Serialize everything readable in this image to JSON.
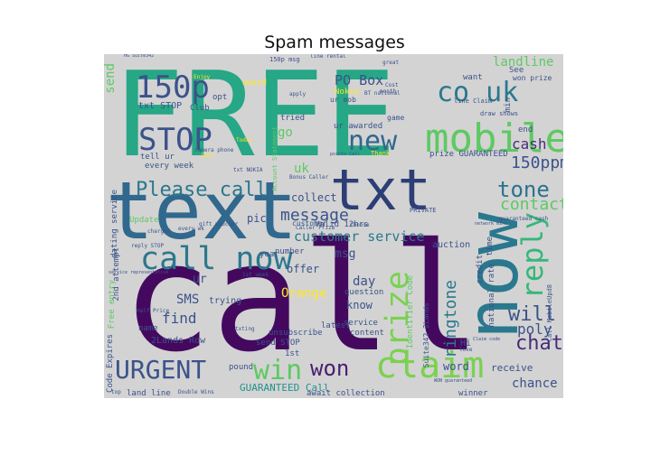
{
  "title": "Spam messages",
  "colors": {
    "background": "#d3d3d3",
    "palette": [
      "#440154",
      "#3b528b",
      "#21918c",
      "#5ec962",
      "#fde725",
      "#2c7f8e"
    ]
  },
  "words": [
    {
      "text": "FREE",
      "color": "#26a785",
      "weight": 100
    },
    {
      "text": "call",
      "color": "#44095f",
      "weight": 98
    },
    {
      "text": "now",
      "color": "#2a788e",
      "weight": 80
    },
    {
      "text": "text",
      "color": "#30688e",
      "weight": 75
    },
    {
      "text": "txt",
      "color": "#2c3e75",
      "weight": 70
    },
    {
      "text": "mobile",
      "color": "#5ec962",
      "weight": 55
    },
    {
      "text": "claim",
      "color": "#7ad151",
      "weight": 50
    },
    {
      "text": "reply",
      "color": "#35b779",
      "weight": 48
    },
    {
      "text": "prize",
      "color": "#7ad151",
      "weight": 46
    },
    {
      "text": "co uk",
      "color": "#2a788e",
      "weight": 45
    },
    {
      "text": "STOP",
      "color": "#3b528b",
      "weight": 44
    },
    {
      "text": "URGENT",
      "color": "#3b528b",
      "weight": 42
    },
    {
      "text": "call now",
      "color": "#2a788e",
      "weight": 42
    },
    {
      "text": "new",
      "color": "#31688e",
      "weight": 40
    },
    {
      "text": "150p",
      "color": "#3b528b",
      "weight": 40
    },
    {
      "text": "win",
      "color": "#5ec962",
      "weight": 38
    },
    {
      "text": "won",
      "color": "#481f70",
      "weight": 38
    },
    {
      "text": "Please call",
      "color": "#2a788e",
      "weight": 36
    },
    {
      "text": "tone",
      "color": "#2c728e",
      "weight": 36
    },
    {
      "text": "chat",
      "color": "#472c7a",
      "weight": 34
    },
    {
      "text": "ringtone",
      "color": "#2a788e",
      "weight": 32
    },
    {
      "text": "contact",
      "color": "#5ec962",
      "weight": 30
    },
    {
      "text": "will",
      "color": "#3b528b",
      "weight": 30
    },
    {
      "text": "message",
      "color": "#3b528b",
      "weight": 28
    },
    {
      "text": "customer service",
      "color": "#2a788e",
      "weight": 26
    },
    {
      "text": "150ppm",
      "color": "#3b528b",
      "weight": 26
    },
    {
      "text": "landline",
      "color": "#5ec962",
      "weight": 24
    },
    {
      "text": "PO Box",
      "color": "#3b528b",
      "weight": 24
    },
    {
      "text": "cash",
      "color": "#472c7a",
      "weight": 24
    },
    {
      "text": "poly",
      "color": "#3b528b",
      "weight": 24
    },
    {
      "text": "chance",
      "color": "#3b528b",
      "weight": 22
    },
    {
      "text": "find",
      "color": "#3b528b",
      "weight": 22
    },
    {
      "text": "go",
      "color": "#5ec962",
      "weight": 22
    },
    {
      "text": "send",
      "color": "#5ec962",
      "weight": 22
    },
    {
      "text": "Orange",
      "color": "#fde725",
      "weight": 22
    },
    {
      "text": "GUARANTEED Call",
      "color": "#21918c",
      "weight": 20
    },
    {
      "text": "SMS",
      "color": "#3b528b",
      "weight": 20
    },
    {
      "text": "uk",
      "color": "#5ec962",
      "weight": 20
    },
    {
      "text": "collect",
      "color": "#3b528b",
      "weight": 18
    },
    {
      "text": "offer",
      "color": "#3b528b",
      "weight": 18
    },
    {
      "text": "msg",
      "color": "#3b528b",
      "weight": 18
    },
    {
      "text": "day",
      "color": "#3b528b",
      "weight": 18
    },
    {
      "text": "know",
      "color": "#3b528b",
      "weight": 18
    },
    {
      "text": "receive",
      "color": "#3b528b",
      "weight": 16
    },
    {
      "text": "word",
      "color": "#3b528b",
      "weight": 16
    },
    {
      "text": "auction",
      "color": "#3b528b",
      "weight": 14
    },
    {
      "text": "Hi",
      "color": "#3b528b",
      "weight": 14
    },
    {
      "text": "pic",
      "color": "#3b528b",
      "weight": 14
    },
    {
      "text": "ur",
      "color": "#3b528b",
      "weight": 14
    },
    {
      "text": "txt STOP",
      "color": "#3b528b",
      "weight": 12
    },
    {
      "text": "tried",
      "color": "#3b528b",
      "weight": 12
    },
    {
      "text": "every week",
      "color": "#3b528b",
      "weight": 12
    },
    {
      "text": "Valid 12hrs",
      "color": "#3b528b",
      "weight": 12
    },
    {
      "text": "trying",
      "color": "#3b528b",
      "weight": 12
    },
    {
      "text": "2Lands Row",
      "color": "#3b528b",
      "weight": 12
    },
    {
      "text": "prize GUARANTEED",
      "color": "#3b528b",
      "weight": 12
    },
    {
      "text": "ur awarded",
      "color": "#3b528b",
      "weight": 12
    },
    {
      "text": "unsubscribe",
      "color": "#3b528b",
      "weight": 12
    },
    {
      "text": "await collection",
      "color": "#3b528b",
      "weight": 12
    },
    {
      "text": "winner",
      "color": "#3b528b",
      "weight": 12
    },
    {
      "text": "latest",
      "color": "#3b528b",
      "weight": 12
    },
    {
      "text": "service",
      "color": "#3b528b",
      "weight": 12
    },
    {
      "text": "content",
      "color": "#3b528b",
      "weight": 12
    },
    {
      "text": "send STOP",
      "color": "#3b528b",
      "weight": 12
    },
    {
      "text": "pound",
      "color": "#3b528b",
      "weight": 12
    },
    {
      "text": "name",
      "color": "#3b528b",
      "weight": 12
    },
    {
      "text": "customer",
      "color": "#3b528b",
      "weight": 10
    },
    {
      "text": "number",
      "color": "#3b528b",
      "weight": 10
    },
    {
      "text": "question",
      "color": "#3b528b",
      "weight": 10
    },
    {
      "text": "land line",
      "color": "#3b528b",
      "weight": 10
    },
    {
      "text": "Double Wins",
      "color": "#3b528b",
      "weight": 8
    },
    {
      "text": "1st",
      "color": "#3b528b",
      "weight": 10
    },
    {
      "text": "year",
      "color": "#3b528b",
      "weight": 10
    },
    {
      "text": "Club",
      "color": "#3b528b",
      "weight": 10
    },
    {
      "text": "opt",
      "color": "#3b528b",
      "weight": 10
    },
    {
      "text": "tell ur",
      "color": "#3b528b",
      "weight": 10
    },
    {
      "text": "Update",
      "color": "#5ec962",
      "weight": 10
    },
    {
      "text": "2nd attempt",
      "color": "#3b528b",
      "weight": 10
    },
    {
      "text": "dating service",
      "color": "#3b528b",
      "weight": 10
    },
    {
      "text": "Free entry",
      "color": "#5ec962",
      "weight": 10
    },
    {
      "text": "Code Expires",
      "color": "#3b528b",
      "weight": 10
    },
    {
      "text": "Suite342 2Lands",
      "color": "#3b528b",
      "weight": 10
    },
    {
      "text": "Identifier Code",
      "color": "#5ec962",
      "weight": 10
    },
    {
      "text": "national rate",
      "color": "#3b528b",
      "weight": 10
    },
    {
      "text": "Call MobileUpd8",
      "color": "#3b528b",
      "weight": 8
    },
    {
      "text": "credit",
      "color": "#3b528b",
      "weight": 10
    },
    {
      "text": "time",
      "color": "#3b528b",
      "weight": 10
    },
    {
      "text": "min",
      "color": "#3b528b",
      "weight": 10
    },
    {
      "text": "See",
      "color": "#3b528b",
      "weight": 10
    },
    {
      "text": "want",
      "color": "#3b528b",
      "weight": 10
    },
    {
      "text": "won prize",
      "color": "#3b528b",
      "weight": 10
    },
    {
      "text": "draw shows",
      "color": "#3b528b",
      "weight": 8
    },
    {
      "text": "game",
      "color": "#3b528b",
      "weight": 8
    },
    {
      "text": "line Claim",
      "color": "#3b528b",
      "weight": 8
    },
    {
      "text": "Nokia",
      "color": "#fde725",
      "weight": 10
    },
    {
      "text": "ur mob",
      "color": "#3b528b",
      "weight": 10
    },
    {
      "text": "award",
      "color": "#fde725",
      "weight": 10
    },
    {
      "text": "PRIVATE",
      "color": "#3b528b",
      "weight": 8
    },
    {
      "text": "Account Statement",
      "color": "#5ec962",
      "weight": 8
    },
    {
      "text": "Half Price",
      "color": "#3b528b",
      "weight": 8
    },
    {
      "text": "HG Suite342",
      "color": "#3b528b",
      "weight": 7
    },
    {
      "text": "150p msg",
      "color": "#3b528b",
      "weight": 8
    },
    {
      "text": "gift voucher",
      "color": "#3b528b",
      "weight": 7
    },
    {
      "text": "txt NOKIA",
      "color": "#3b528b",
      "weight": 7
    },
    {
      "text": "Today",
      "color": "#fde725",
      "weight": 7
    },
    {
      "text": "Dear",
      "color": "#fde725",
      "weight": 7
    },
    {
      "text": "guaranteed cash",
      "color": "#3b528b",
      "weight": 7
    },
    {
      "text": "Claim code",
      "color": "#3b528b",
      "weight": 7
    },
    {
      "text": "Caller Prize",
      "color": "#3b528b",
      "weight": 7
    },
    {
      "text": "network mins",
      "color": "#3b528b",
      "weight": 7
    },
    {
      "text": "WON guaranteed",
      "color": "#3b528b",
      "weight": 7
    },
    {
      "text": "Bonus Caller",
      "color": "#3b528b",
      "weight": 7
    },
    {
      "text": "service representative",
      "color": "#3b528b",
      "weight": 7
    },
    {
      "text": "reply STOP",
      "color": "#3b528b",
      "weight": 7
    },
    {
      "text": "charged",
      "color": "#3b528b",
      "weight": 7
    },
    {
      "text": "camera phone",
      "color": "#3b528b",
      "weight": 7
    },
    {
      "text": "every wk",
      "color": "#3b528b",
      "weight": 7
    },
    {
      "text": "1st week",
      "color": "#3b528b",
      "weight": 7
    },
    {
      "text": "line rental",
      "color": "#3b528b",
      "weight": 7
    },
    {
      "text": "Choose",
      "color": "#3b528b",
      "weight": 7
    },
    {
      "text": "txting",
      "color": "#3b528b",
      "weight": 7
    },
    {
      "text": "Thank",
      "color": "#fde725",
      "weight": 7
    },
    {
      "text": "points Call",
      "color": "#3b528b",
      "weight": 7
    },
    {
      "text": "great",
      "color": "#3b528b",
      "weight": 7
    },
    {
      "text": "month",
      "color": "#3b528b",
      "weight": 7
    },
    {
      "text": "Cost",
      "color": "#3b528b",
      "weight": 7
    },
    {
      "text": "BT national",
      "color": "#3b528b",
      "weight": 7
    },
    {
      "text": "apply",
      "color": "#3b528b",
      "weight": 7
    },
    {
      "text": "top",
      "color": "#3b528b",
      "weight": 7
    },
    {
      "text": "end",
      "color": "#3b528b",
      "weight": 10
    },
    {
      "text": "love",
      "color": "#3b528b",
      "weight": 7
    },
    {
      "text": "Enjoy",
      "color": "#fde725",
      "weight": 7
    }
  ]
}
